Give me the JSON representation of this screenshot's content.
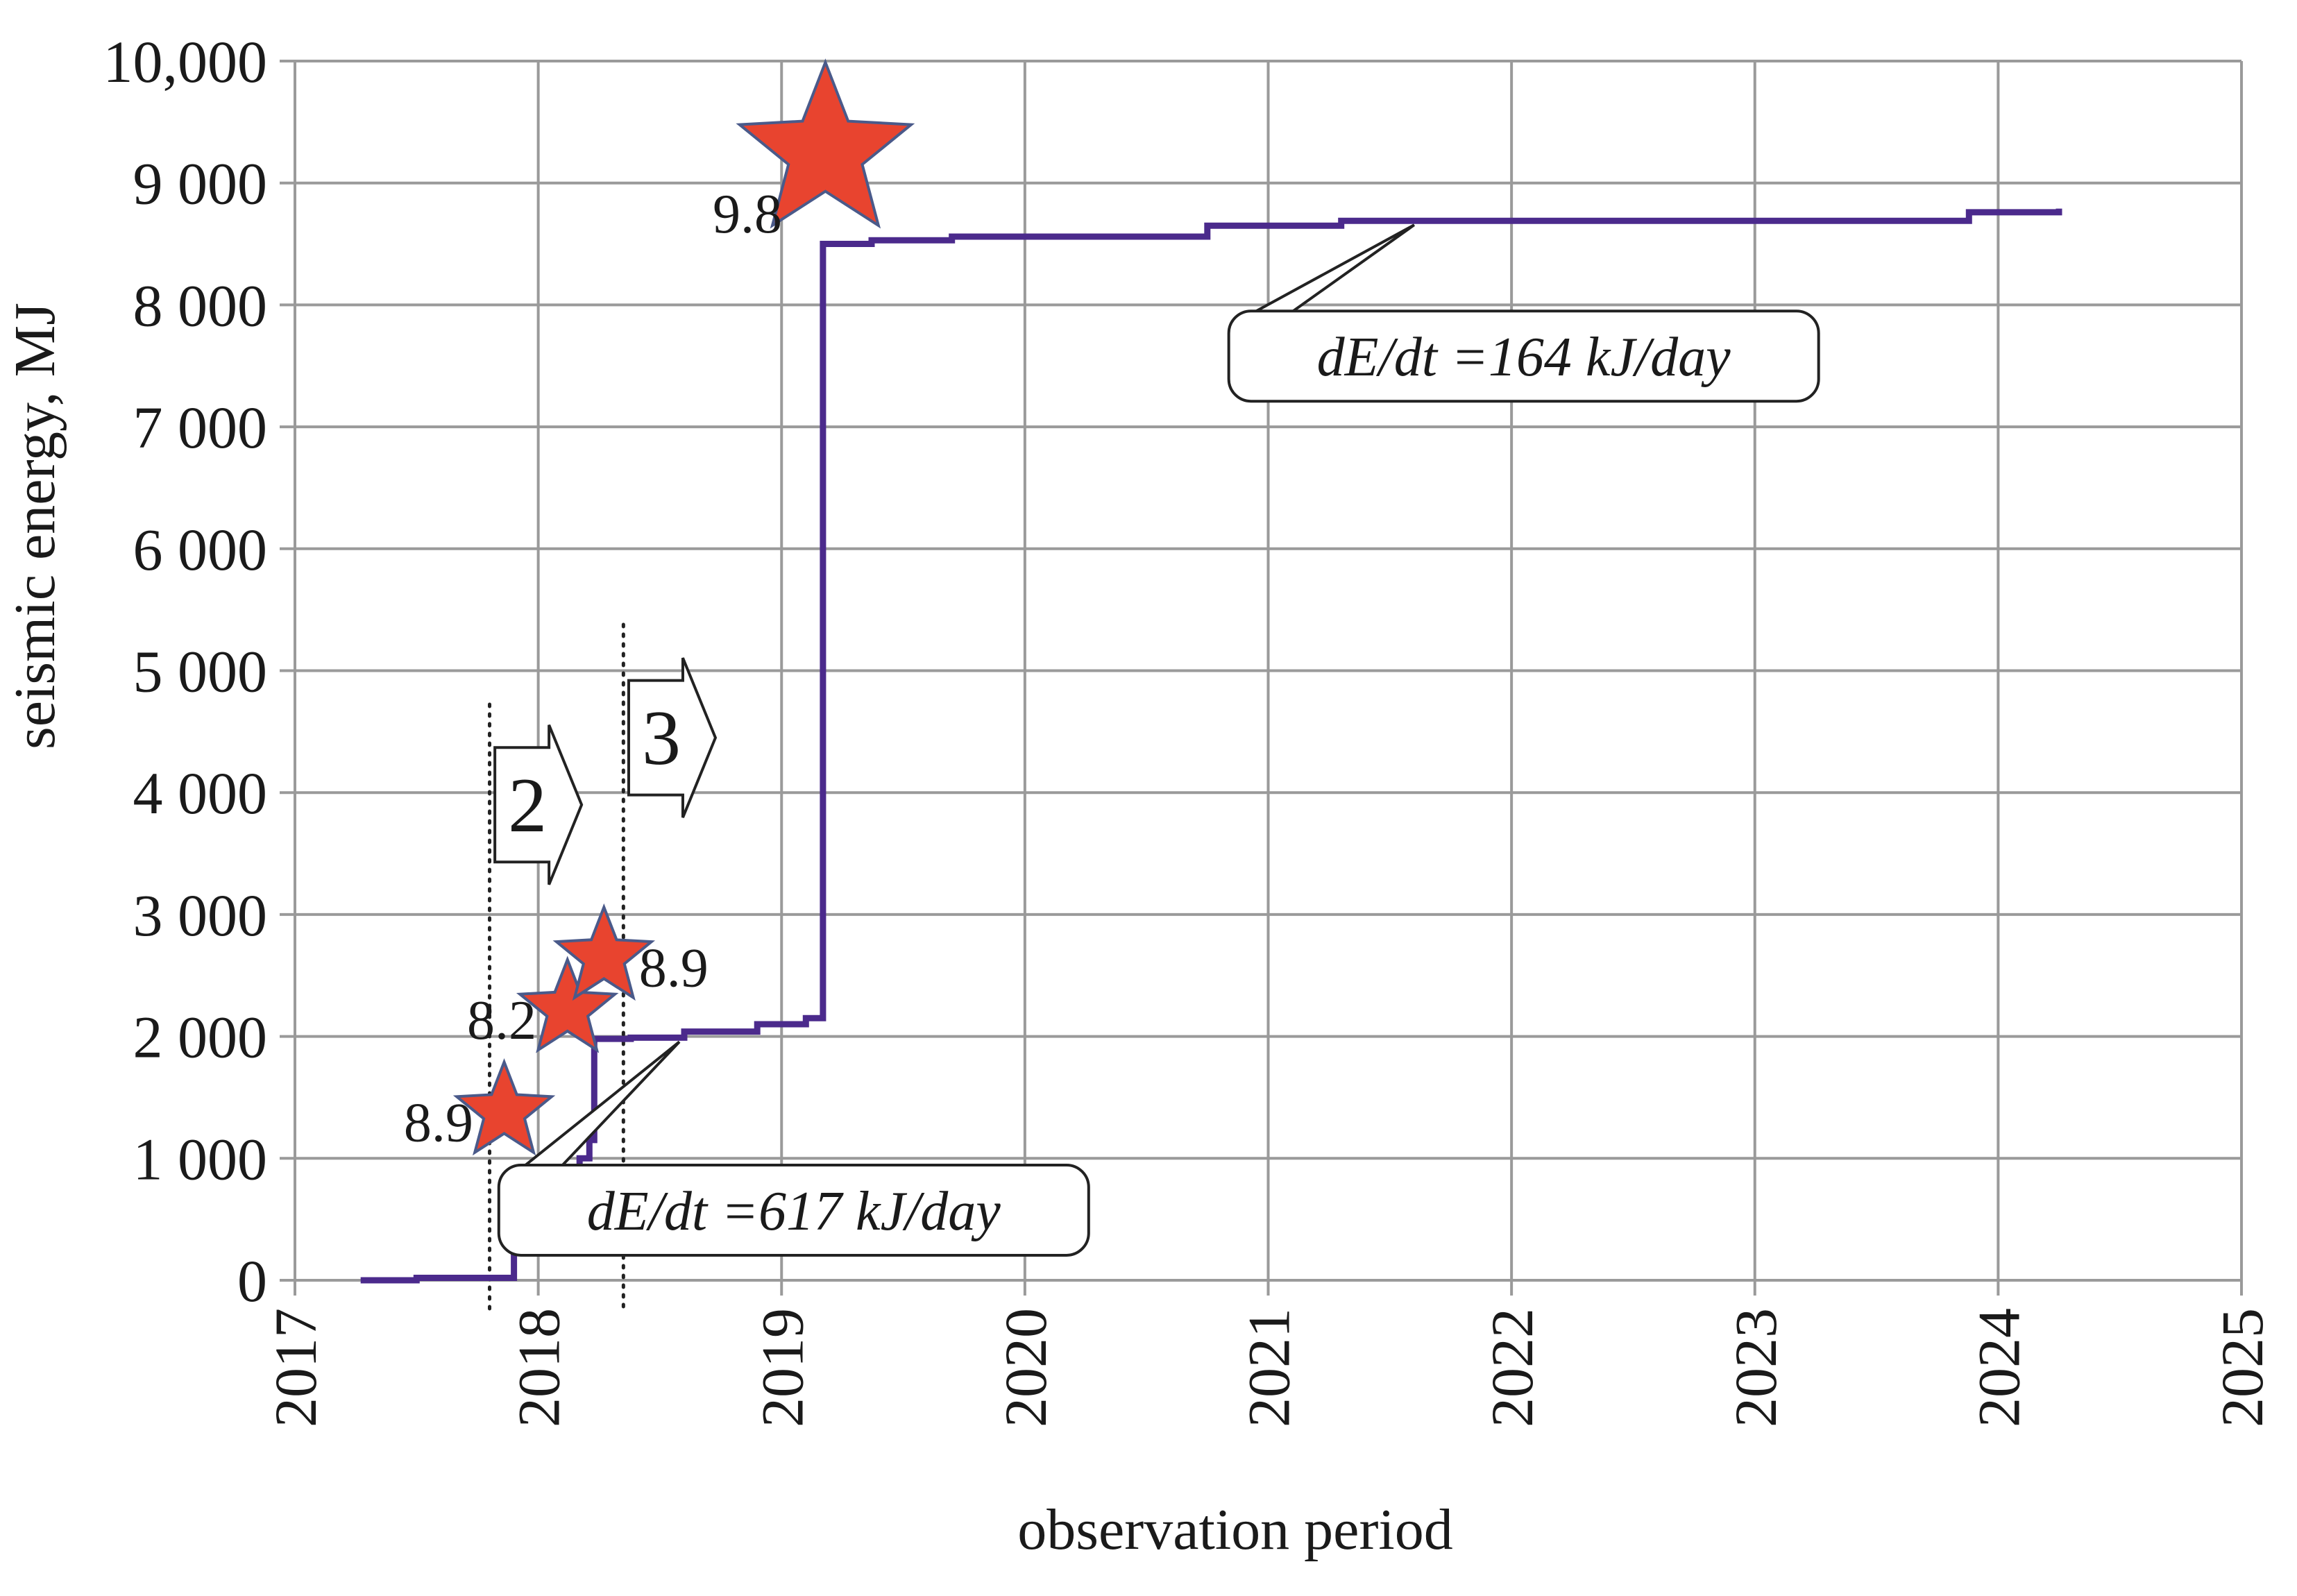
{
  "chart_data": {
    "type": "line",
    "xlabel": "observation period",
    "ylabel": "seismic energy, MJ",
    "xlim": [
      2017,
      2025
    ],
    "ylim": [
      0,
      10000
    ],
    "grid": true,
    "x_ticks": [
      "2017",
      "2018",
      "2019",
      "2020",
      "2021",
      "2022",
      "2023",
      "2024",
      "2025"
    ],
    "y_ticks": [
      {
        "value": 0,
        "label": "0"
      },
      {
        "value": 1000,
        "label": "1 000"
      },
      {
        "value": 2000,
        "label": "2 000"
      },
      {
        "value": 3000,
        "label": "3 000"
      },
      {
        "value": 4000,
        "label": "4 000"
      },
      {
        "value": 5000,
        "label": "5 000"
      },
      {
        "value": 6000,
        "label": "6 000"
      },
      {
        "value": 7000,
        "label": "7 000"
      },
      {
        "value": 8000,
        "label": "8 000"
      },
      {
        "value": 9000,
        "label": "9 000"
      },
      {
        "value": 10000,
        "label": "10,000"
      }
    ],
    "series": [
      {
        "color": "#4b2a8c",
        "step_points": [
          [
            2017.27,
            0
          ],
          [
            2017.5,
            0
          ],
          [
            2017.5,
            20
          ],
          [
            2017.9,
            20
          ],
          [
            2017.9,
            820
          ],
          [
            2018.05,
            820
          ],
          [
            2018.05,
            850
          ],
          [
            2018.12,
            850
          ],
          [
            2018.12,
            920
          ],
          [
            2018.17,
            920
          ],
          [
            2018.17,
            1000
          ],
          [
            2018.21,
            1000
          ],
          [
            2018.21,
            1150
          ],
          [
            2018.23,
            1150
          ],
          [
            2018.23,
            1980
          ],
          [
            2018.38,
            1980
          ],
          [
            2018.38,
            1990
          ],
          [
            2018.6,
            1990
          ],
          [
            2018.6,
            2040
          ],
          [
            2018.9,
            2040
          ],
          [
            2018.9,
            2100
          ],
          [
            2019.1,
            2100
          ],
          [
            2019.1,
            2150
          ],
          [
            2019.17,
            2150
          ],
          [
            2019.17,
            8500
          ],
          [
            2019.37,
            8500
          ],
          [
            2019.37,
            8530
          ],
          [
            2019.7,
            8530
          ],
          [
            2019.7,
            8560
          ],
          [
            2020.75,
            8560
          ],
          [
            2020.75,
            8650
          ],
          [
            2021.3,
            8650
          ],
          [
            2021.3,
            8690
          ],
          [
            2023.88,
            8690
          ],
          [
            2023.88,
            8760
          ],
          [
            2024.25,
            8760
          ],
          [
            2024.25,
            8790
          ]
        ]
      }
    ],
    "events": [
      {
        "label": "8.9",
        "x": 2017.86,
        "y": 1380,
        "size": "small",
        "label_side": "left"
      },
      {
        "label": "8.2",
        "x": 2018.12,
        "y": 2220,
        "size": "small",
        "label_side": "left"
      },
      {
        "label": "8.9",
        "x": 2018.27,
        "y": 2650,
        "size": "small",
        "label_side": "right"
      },
      {
        "label": "9.8",
        "x": 2019.18,
        "y": 9250,
        "size": "large",
        "label_side": "left"
      }
    ],
    "phase_boundaries": [
      2017.8,
      2018.35
    ],
    "phases": [
      {
        "label": "2",
        "x": 2018.0,
        "y": 3900
      },
      {
        "label": "3",
        "x": 2018.55,
        "y": 4450
      }
    ],
    "rate_callouts": [
      {
        "text": "dE/dt =617 kJ/day",
        "point": [
          2018.58,
          1990
        ],
        "box_center": [
          2019.05,
          575
        ]
      },
      {
        "text": "dE/dt =164 kJ/day",
        "point": [
          2021.6,
          8690
        ],
        "box_center": [
          2022.05,
          7580
        ]
      }
    ],
    "colors": {
      "line": "#4b2a8c",
      "star_fill": "#e8442f",
      "star_stroke": "#4a5a8a",
      "grid": "#9a9a9a"
    }
  }
}
